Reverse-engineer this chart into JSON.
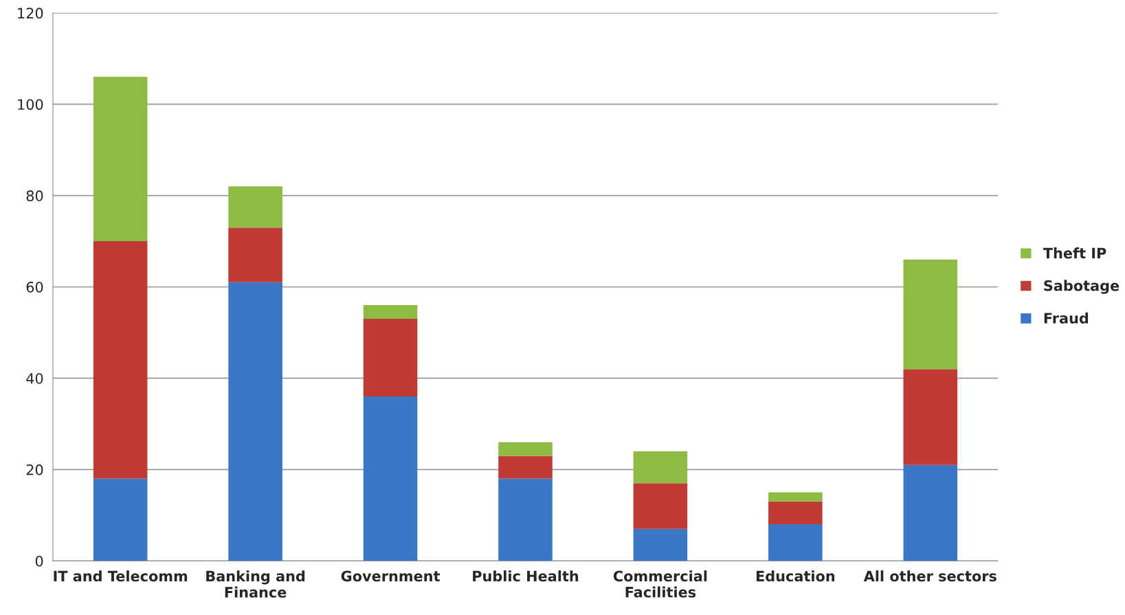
{
  "chart_data": {
    "type": "bar",
    "stacked": true,
    "categories": [
      "IT and Telecomm",
      "Banking and Finance",
      "Government",
      "Public Health",
      "Commercial Facilities",
      "Education",
      "All other sectors"
    ],
    "series": [
      {
        "name": "Fraud",
        "color": "#3a78c6",
        "values": [
          18,
          61,
          36,
          18,
          7,
          8,
          21
        ]
      },
      {
        "name": "Sabotage",
        "color": "#c03a36",
        "values": [
          52,
          12,
          17,
          5,
          10,
          5,
          21
        ]
      },
      {
        "name": "Theft IP",
        "color": "#8fba44",
        "values": [
          36,
          9,
          3,
          3,
          7,
          2,
          24
        ]
      }
    ],
    "ylim": [
      0,
      120
    ],
    "yticks": [
      0,
      20,
      40,
      60,
      80,
      100,
      120
    ],
    "grid": "y",
    "legend": "right"
  }
}
